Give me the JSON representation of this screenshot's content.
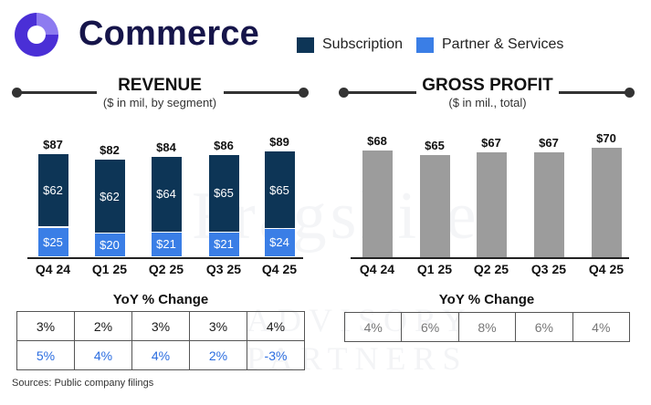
{
  "brand": {
    "name": "Commerce"
  },
  "colors": {
    "subscription": "#0d3556",
    "partner_services": "#3a7ee6",
    "gross_profit": "#9c9c9c",
    "brand_dark": "#16154a",
    "brand_accent": "#4a2fd6"
  },
  "legend": [
    {
      "label": "Subscription",
      "color": "#0d3556"
    },
    {
      "label": "Partner & Services",
      "color": "#3a7ee6"
    }
  ],
  "watermark": {
    "line1": "Fragshire",
    "line2": "ADVISORY PARTNERS"
  },
  "source": "Sources: Public company filings",
  "chart_data": [
    {
      "type": "bar",
      "stacked": true,
      "title": "REVENUE",
      "subtitle": "($ in mil, by segment)",
      "categories": [
        "Q4 24",
        "Q1 25",
        "Q2 25",
        "Q3 25",
        "Q4 25"
      ],
      "totals": [
        "$87",
        "$82",
        "$84",
        "$86",
        "$89"
      ],
      "series": [
        {
          "name": "Partner & Services",
          "values": [
            25,
            20,
            21,
            21,
            24
          ],
          "labels": [
            "$25",
            "$20",
            "$21",
            "$21",
            "$24"
          ]
        },
        {
          "name": "Subscription",
          "values": [
            62,
            62,
            64,
            65,
            65
          ],
          "labels": [
            "$62",
            "$62",
            "$64",
            "$65",
            "$65"
          ]
        }
      ],
      "ylim": [
        0,
        100
      ],
      "yoy": {
        "title": "YoY % Change",
        "rows": [
          [
            "3%",
            "2%",
            "3%",
            "3%",
            "4%"
          ],
          [
            "5%",
            "4%",
            "4%",
            "2%",
            "-3%"
          ]
        ]
      }
    },
    {
      "type": "bar",
      "title": "GROSS PROFIT",
      "subtitle": "($ in mil., total)",
      "categories": [
        "Q4 24",
        "Q1 25",
        "Q2 25",
        "Q3 25",
        "Q4 25"
      ],
      "values": [
        68,
        65,
        67,
        67,
        70
      ],
      "labels": [
        "$68",
        "$65",
        "$67",
        "$67",
        "$70"
      ],
      "ylim": [
        0,
        100
      ],
      "yoy": {
        "title": "YoY % Change",
        "rows": [
          [
            "4%",
            "6%",
            "8%",
            "6%",
            "4%"
          ]
        ]
      }
    }
  ]
}
